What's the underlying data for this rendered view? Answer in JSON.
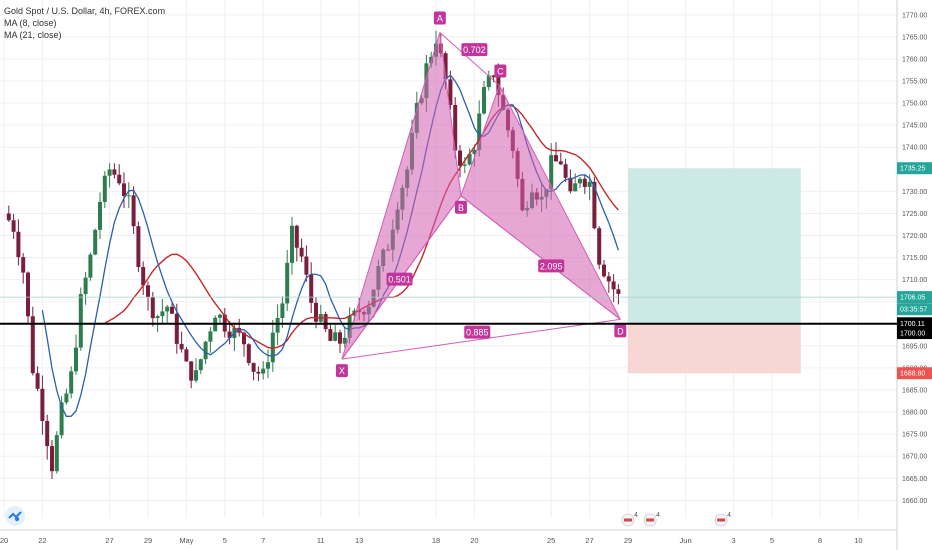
{
  "legend": {
    "title": "Gold Spot / U.S. Dollar, 4h, FOREX.com",
    "ma1": "MA (8, close)",
    "ma2": "MA (21, close)"
  },
  "colors": {
    "up": "#2f7d4f",
    "down": "#7a1f3a",
    "ma_fast": "#2c5fb0",
    "ma_slow": "#c8262c",
    "pattern": "#d35eb3",
    "tp_zone": "#cde9e6",
    "sl_zone": "#f8d6d4",
    "key_line": "#000000"
  },
  "chart_data": {
    "type": "candlestick",
    "symbol": "Gold Spot / U.S. Dollar",
    "timeframe": "4h",
    "ylim": [
      1656,
      1772
    ],
    "yticks": [
      1660,
      1665,
      1670,
      1675,
      1680,
      1685,
      1690,
      1695,
      1705,
      1710,
      1715,
      1720,
      1725,
      1730,
      1740,
      1745,
      1750,
      1755,
      1760,
      1765,
      1770
    ],
    "xtick_labels": [
      "20",
      "22",
      "27",
      "29",
      "May",
      "5",
      "7",
      "11",
      "13",
      "18",
      "20",
      "25",
      "27",
      "29",
      "Jun",
      "3",
      "5",
      "8",
      "10"
    ],
    "anchors": [
      {
        "day": 0,
        "label": "20"
      },
      {
        "day": 4,
        "label": "22"
      },
      {
        "day": 11,
        "label": "27"
      },
      {
        "day": 15,
        "label": "29"
      },
      {
        "day": 19,
        "label": "May"
      },
      {
        "day": 23,
        "label": "5"
      },
      {
        "day": 27,
        "label": "7"
      },
      {
        "day": 33,
        "label": "11"
      },
      {
        "day": 37,
        "label": "13"
      },
      {
        "day": 45,
        "label": "18"
      },
      {
        "day": 49,
        "label": "20"
      },
      {
        "day": 57,
        "label": "25"
      },
      {
        "day": 61,
        "label": "27"
      },
      {
        "day": 65,
        "label": "29"
      },
      {
        "day": 71,
        "label": "Jun"
      },
      {
        "day": 76,
        "label": "3"
      },
      {
        "day": 80,
        "label": "5"
      },
      {
        "day": 85,
        "label": "8"
      },
      {
        "day": 89,
        "label": "10"
      }
    ],
    "price_path": [
      [
        0,
        1725
      ],
      [
        1,
        1722
      ],
      [
        2,
        1712
      ],
      [
        3,
        1690
      ],
      [
        4,
        1680
      ],
      [
        5,
        1668
      ],
      [
        6,
        1680
      ],
      [
        7,
        1688
      ],
      [
        8,
        1705
      ],
      [
        9,
        1715
      ],
      [
        10,
        1728
      ],
      [
        11,
        1735
      ],
      [
        12,
        1733
      ],
      [
        13,
        1727
      ],
      [
        14,
        1715
      ],
      [
        15,
        1705
      ],
      [
        16,
        1702
      ],
      [
        17,
        1704
      ],
      [
        18,
        1697
      ],
      [
        19,
        1690
      ],
      [
        20,
        1688
      ],
      [
        21,
        1696
      ],
      [
        22,
        1703
      ],
      [
        23,
        1700
      ],
      [
        24,
        1698
      ],
      [
        25,
        1696
      ],
      [
        26,
        1690
      ],
      [
        27,
        1688
      ],
      [
        28,
        1698
      ],
      [
        29,
        1705
      ],
      [
        30,
        1720
      ],
      [
        31,
        1715
      ],
      [
        32,
        1705
      ],
      [
        33,
        1700
      ],
      [
        34,
        1696
      ],
      [
        35,
        1696
      ],
      [
        36,
        1700
      ],
      [
        37,
        1703
      ],
      [
        38,
        1705
      ],
      [
        39,
        1712
      ],
      [
        40,
        1718
      ],
      [
        41,
        1728
      ],
      [
        42,
        1735
      ],
      [
        43,
        1748
      ],
      [
        44,
        1758
      ],
      [
        45,
        1765
      ],
      [
        46,
        1755
      ],
      [
        47,
        1740
      ],
      [
        48,
        1735
      ],
      [
        49,
        1741
      ],
      [
        50,
        1752
      ],
      [
        51,
        1757
      ],
      [
        52,
        1748
      ],
      [
        53,
        1740
      ],
      [
        54,
        1725
      ],
      [
        55,
        1732
      ],
      [
        56,
        1728
      ],
      [
        57,
        1736
      ],
      [
        58,
        1737
      ],
      [
        59,
        1728
      ],
      [
        60,
        1734
      ],
      [
        61,
        1732
      ],
      [
        62,
        1715
      ],
      [
        63,
        1710
      ],
      [
        64,
        1706
      ]
    ],
    "pattern": {
      "name": "harmonic",
      "points": [
        {
          "label": "X",
          "day": 35.2,
          "price": 1692
        },
        {
          "label": "A",
          "day": 45.4,
          "price": 1766
        },
        {
          "label": "B",
          "day": 47.6,
          "price": 1729
        },
        {
          "label": "C",
          "day": 51.6,
          "price": 1754
        },
        {
          "label": "D",
          "day": 64.2,
          "price": 1701
        }
      ],
      "ratios": [
        {
          "text": "0.702",
          "day": 49.0,
          "price": 1762
        },
        {
          "text": "0.501",
          "day": 41.2,
          "price": 1710
        },
        {
          "text": "2.095",
          "day": 57.0,
          "price": 1713
        },
        {
          "text": "0.885",
          "day": 49.3,
          "price": 1698
        }
      ]
    },
    "key_level": 1700.0,
    "position": {
      "entry": 1700.11,
      "target": 1735.25,
      "stop": 1688.8,
      "start_day": 65,
      "end_day": 83
    },
    "axis_labels": [
      {
        "text": "1735.25",
        "price": 1735.25,
        "bg": "#26a69a"
      },
      {
        "text": "1706.05",
        "price": 1706.05,
        "bg": "#26a69a"
      },
      {
        "text": "03:35:57",
        "price": 1703.3,
        "bg": "#26a69a"
      },
      {
        "text": "1700.11",
        "price": 1700.11,
        "bg": "#000000"
      },
      {
        "text": "1700.00",
        "price": 1697.9,
        "bg": "#000000"
      },
      {
        "text": "1688.80",
        "price": 1688.8,
        "bg": "#ef5350"
      }
    ],
    "events": [
      {
        "day": 65,
        "count": "4"
      },
      {
        "day": 67.3,
        "count": "4"
      },
      {
        "day": 74.7,
        "count": "4"
      }
    ]
  }
}
